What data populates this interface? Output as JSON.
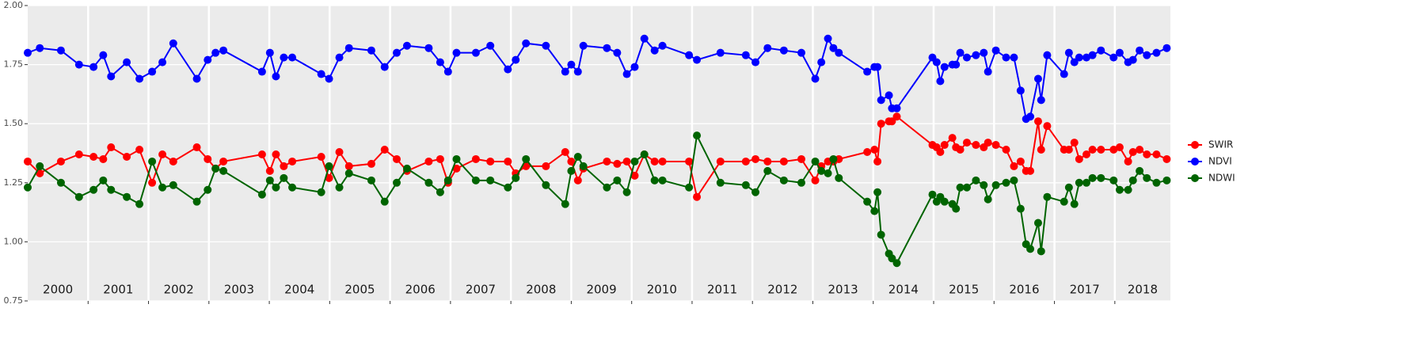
{
  "chart_data": {
    "type": "line",
    "x": [
      2000.0,
      2000.2,
      2000.55,
      2000.85,
      2001.09,
      2001.25,
      2001.38,
      2001.64,
      2001.85,
      2002.06,
      2002.23,
      2002.41,
      2002.8,
      2002.98,
      2003.11,
      2003.24,
      2003.88,
      2004.01,
      2004.11,
      2004.24,
      2004.38,
      2004.86,
      2004.99,
      2005.16,
      2005.32,
      2005.69,
      2005.91,
      2006.11,
      2006.28,
      2006.64,
      2006.83,
      2006.96,
      2007.1,
      2007.42,
      2007.66,
      2007.95,
      2008.08,
      2008.25,
      2008.58,
      2008.9,
      2009.0,
      2009.11,
      2009.2,
      2009.59,
      2009.76,
      2009.92,
      2010.05,
      2010.21,
      2010.38,
      2010.51,
      2010.95,
      2011.08,
      2011.47,
      2011.89,
      2012.05,
      2012.25,
      2012.52,
      2012.81,
      2013.04,
      2013.14,
      2013.25,
      2013.34,
      2013.43,
      2013.9,
      2014.02,
      2014.07,
      2014.13,
      2014.26,
      2014.31,
      2014.39,
      2014.98,
      2015.05,
      2015.11,
      2015.18,
      2015.31,
      2015.37,
      2015.44,
      2015.55,
      2015.7,
      2015.83,
      2015.9,
      2016.03,
      2016.2,
      2016.33,
      2016.44,
      2016.53,
      2016.6,
      2016.73,
      2016.78,
      2016.88,
      2017.16,
      2017.24,
      2017.33,
      2017.41,
      2017.53,
      2017.63,
      2017.77,
      2017.98,
      2018.08,
      2018.22,
      2018.3,
      2018.41,
      2018.53,
      2018.69,
      2018.86
    ],
    "series": [
      {
        "name": "SWIR",
        "color": "#ff0000",
        "values": [
          1.34,
          1.29,
          1.34,
          1.37,
          1.36,
          1.35,
          1.4,
          1.36,
          1.39,
          1.25,
          1.37,
          1.34,
          1.4,
          1.35,
          1.31,
          1.34,
          1.37,
          1.3,
          1.37,
          1.32,
          1.34,
          1.36,
          1.27,
          1.38,
          1.32,
          1.33,
          1.39,
          1.35,
          1.3,
          1.34,
          1.35,
          1.25,
          1.31,
          1.35,
          1.34,
          1.34,
          1.29,
          1.32,
          1.32,
          1.38,
          1.34,
          1.26,
          1.31,
          1.34,
          1.33,
          1.34,
          1.28,
          1.37,
          1.34,
          1.34,
          1.34,
          1.19,
          1.34,
          1.34,
          1.35,
          1.34,
          1.34,
          1.35,
          1.26,
          1.32,
          1.34,
          1.34,
          1.35,
          1.38,
          1.39,
          1.34,
          1.5,
          1.51,
          1.51,
          1.53,
          1.41,
          1.4,
          1.38,
          1.41,
          1.44,
          1.4,
          1.39,
          1.42,
          1.41,
          1.4,
          1.42,
          1.41,
          1.39,
          1.32,
          1.34,
          1.3,
          1.3,
          1.51,
          1.39,
          1.49,
          1.39,
          1.39,
          1.42,
          1.35,
          1.37,
          1.39,
          1.39,
          1.39,
          1.4,
          1.34,
          1.38,
          1.39,
          1.37,
          1.37,
          1.35
        ]
      },
      {
        "name": "NDVI",
        "color": "#0000ff",
        "values": [
          1.8,
          1.82,
          1.81,
          1.75,
          1.74,
          1.79,
          1.7,
          1.76,
          1.69,
          1.72,
          1.76,
          1.84,
          1.69,
          1.77,
          1.8,
          1.81,
          1.72,
          1.8,
          1.7,
          1.78,
          1.78,
          1.71,
          1.69,
          1.78,
          1.82,
          1.81,
          1.74,
          1.8,
          1.83,
          1.82,
          1.76,
          1.72,
          1.8,
          1.8,
          1.83,
          1.73,
          1.77,
          1.84,
          1.83,
          1.72,
          1.75,
          1.72,
          1.83,
          1.82,
          1.8,
          1.71,
          1.74,
          1.86,
          1.81,
          1.83,
          1.79,
          1.77,
          1.8,
          1.79,
          1.76,
          1.82,
          1.81,
          1.8,
          1.69,
          1.76,
          1.86,
          1.82,
          1.8,
          1.72,
          1.74,
          1.74,
          1.6,
          1.62,
          1.565,
          1.565,
          1.78,
          1.76,
          1.68,
          1.74,
          1.75,
          1.75,
          1.8,
          1.78,
          1.79,
          1.8,
          1.72,
          1.81,
          1.78,
          1.78,
          1.64,
          1.52,
          1.53,
          1.69,
          1.6,
          1.79,
          1.71,
          1.8,
          1.76,
          1.78,
          1.78,
          1.79,
          1.81,
          1.78,
          1.8,
          1.76,
          1.77,
          1.81,
          1.79,
          1.8,
          1.82
        ]
      },
      {
        "name": "NDWI",
        "color": "#006400",
        "values": [
          1.23,
          1.32,
          1.25,
          1.19,
          1.22,
          1.26,
          1.22,
          1.19,
          1.16,
          1.34,
          1.23,
          1.24,
          1.17,
          1.22,
          1.31,
          1.3,
          1.2,
          1.26,
          1.23,
          1.27,
          1.23,
          1.21,
          1.32,
          1.23,
          1.29,
          1.26,
          1.17,
          1.25,
          1.31,
          1.25,
          1.21,
          1.26,
          1.35,
          1.26,
          1.26,
          1.23,
          1.27,
          1.35,
          1.24,
          1.16,
          1.3,
          1.36,
          1.32,
          1.23,
          1.26,
          1.21,
          1.34,
          1.37,
          1.26,
          1.26,
          1.23,
          1.45,
          1.25,
          1.24,
          1.21,
          1.3,
          1.26,
          1.25,
          1.34,
          1.3,
          1.29,
          1.35,
          1.27,
          1.17,
          1.13,
          1.21,
          1.03,
          0.95,
          0.93,
          0.91,
          1.2,
          1.17,
          1.19,
          1.17,
          1.16,
          1.14,
          1.23,
          1.23,
          1.26,
          1.24,
          1.18,
          1.24,
          1.25,
          1.26,
          1.14,
          0.99,
          0.97,
          1.08,
          0.96,
          1.19,
          1.17,
          1.23,
          1.16,
          1.25,
          1.25,
          1.27,
          1.27,
          1.26,
          1.22,
          1.22,
          1.26,
          1.3,
          1.27,
          1.25,
          1.26
        ]
      }
    ],
    "xlim": [
      2000,
      2018.92
    ],
    "xticks": [
      2001,
      2002,
      2003,
      2004,
      2005,
      2006,
      2007,
      2008,
      2009,
      2010,
      2011,
      2012,
      2013,
      2014,
      2015,
      2016,
      2017,
      2018
    ],
    "year_labels": [
      "2000",
      "2001",
      "2002",
      "2003",
      "2004",
      "2005",
      "2006",
      "2007",
      "2008",
      "2009",
      "2010",
      "2011",
      "2012",
      "2013",
      "2014",
      "2015",
      "2016",
      "2017",
      "2018"
    ],
    "ylim": [
      0.75,
      2.0
    ],
    "yticks": [
      {
        "value": 0.75,
        "label": "0.75"
      },
      {
        "value": 1.0,
        "label": "1.00"
      },
      {
        "value": 1.25,
        "label": "1.25"
      },
      {
        "value": 1.5,
        "label": "1.50"
      },
      {
        "value": 1.75,
        "label": "1.75"
      },
      {
        "value": 2.0,
        "label": "2.00"
      }
    ],
    "grid": true,
    "legend": "right"
  }
}
